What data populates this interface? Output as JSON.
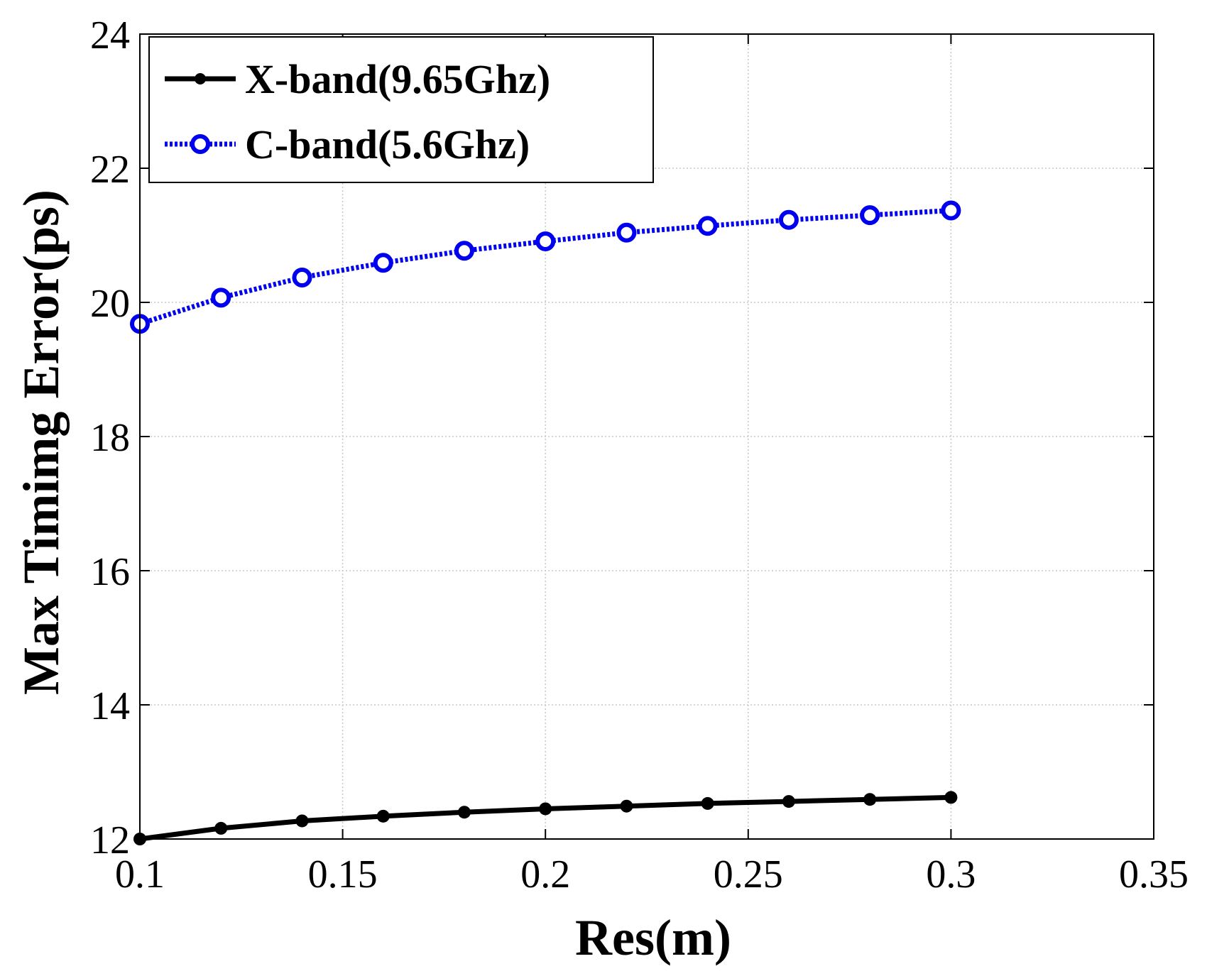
{
  "chart_data": {
    "type": "line",
    "title": "",
    "xlabel": "Res(m)",
    "ylabel": "Max Timimg Error(ps)",
    "xlim": [
      0.1,
      0.35
    ],
    "ylim": [
      12,
      24
    ],
    "xticks": [
      0.1,
      0.15,
      0.2,
      0.25,
      0.3,
      0.35
    ],
    "xtick_labels": [
      "0.1",
      "0.15",
      "0.2",
      "0.25",
      "0.3",
      "0.35"
    ],
    "yticks": [
      12,
      14,
      16,
      18,
      20,
      22,
      24
    ],
    "ytick_labels": [
      "12",
      "14",
      "16",
      "18",
      "20",
      "22",
      "24"
    ],
    "grid": true,
    "legend_position": "top-left",
    "x": [
      0.1,
      0.12,
      0.14,
      0.16,
      0.18,
      0.2,
      0.22,
      0.24,
      0.26,
      0.28,
      0.3
    ],
    "series": [
      {
        "name": "X-band(9.65Ghz)",
        "color": "#000000",
        "style": "solid",
        "marker": "filled-circle",
        "values": [
          12.0,
          12.16,
          12.27,
          12.34,
          12.4,
          12.45,
          12.49,
          12.53,
          12.56,
          12.59,
          12.62
        ]
      },
      {
        "name": "C-band(5.6Ghz)",
        "color": "#0000ee",
        "style": "dotted",
        "marker": "open-circle",
        "values": [
          19.68,
          20.07,
          20.37,
          20.59,
          20.77,
          20.91,
          21.04,
          21.14,
          21.23,
          21.3,
          21.37
        ]
      }
    ]
  }
}
